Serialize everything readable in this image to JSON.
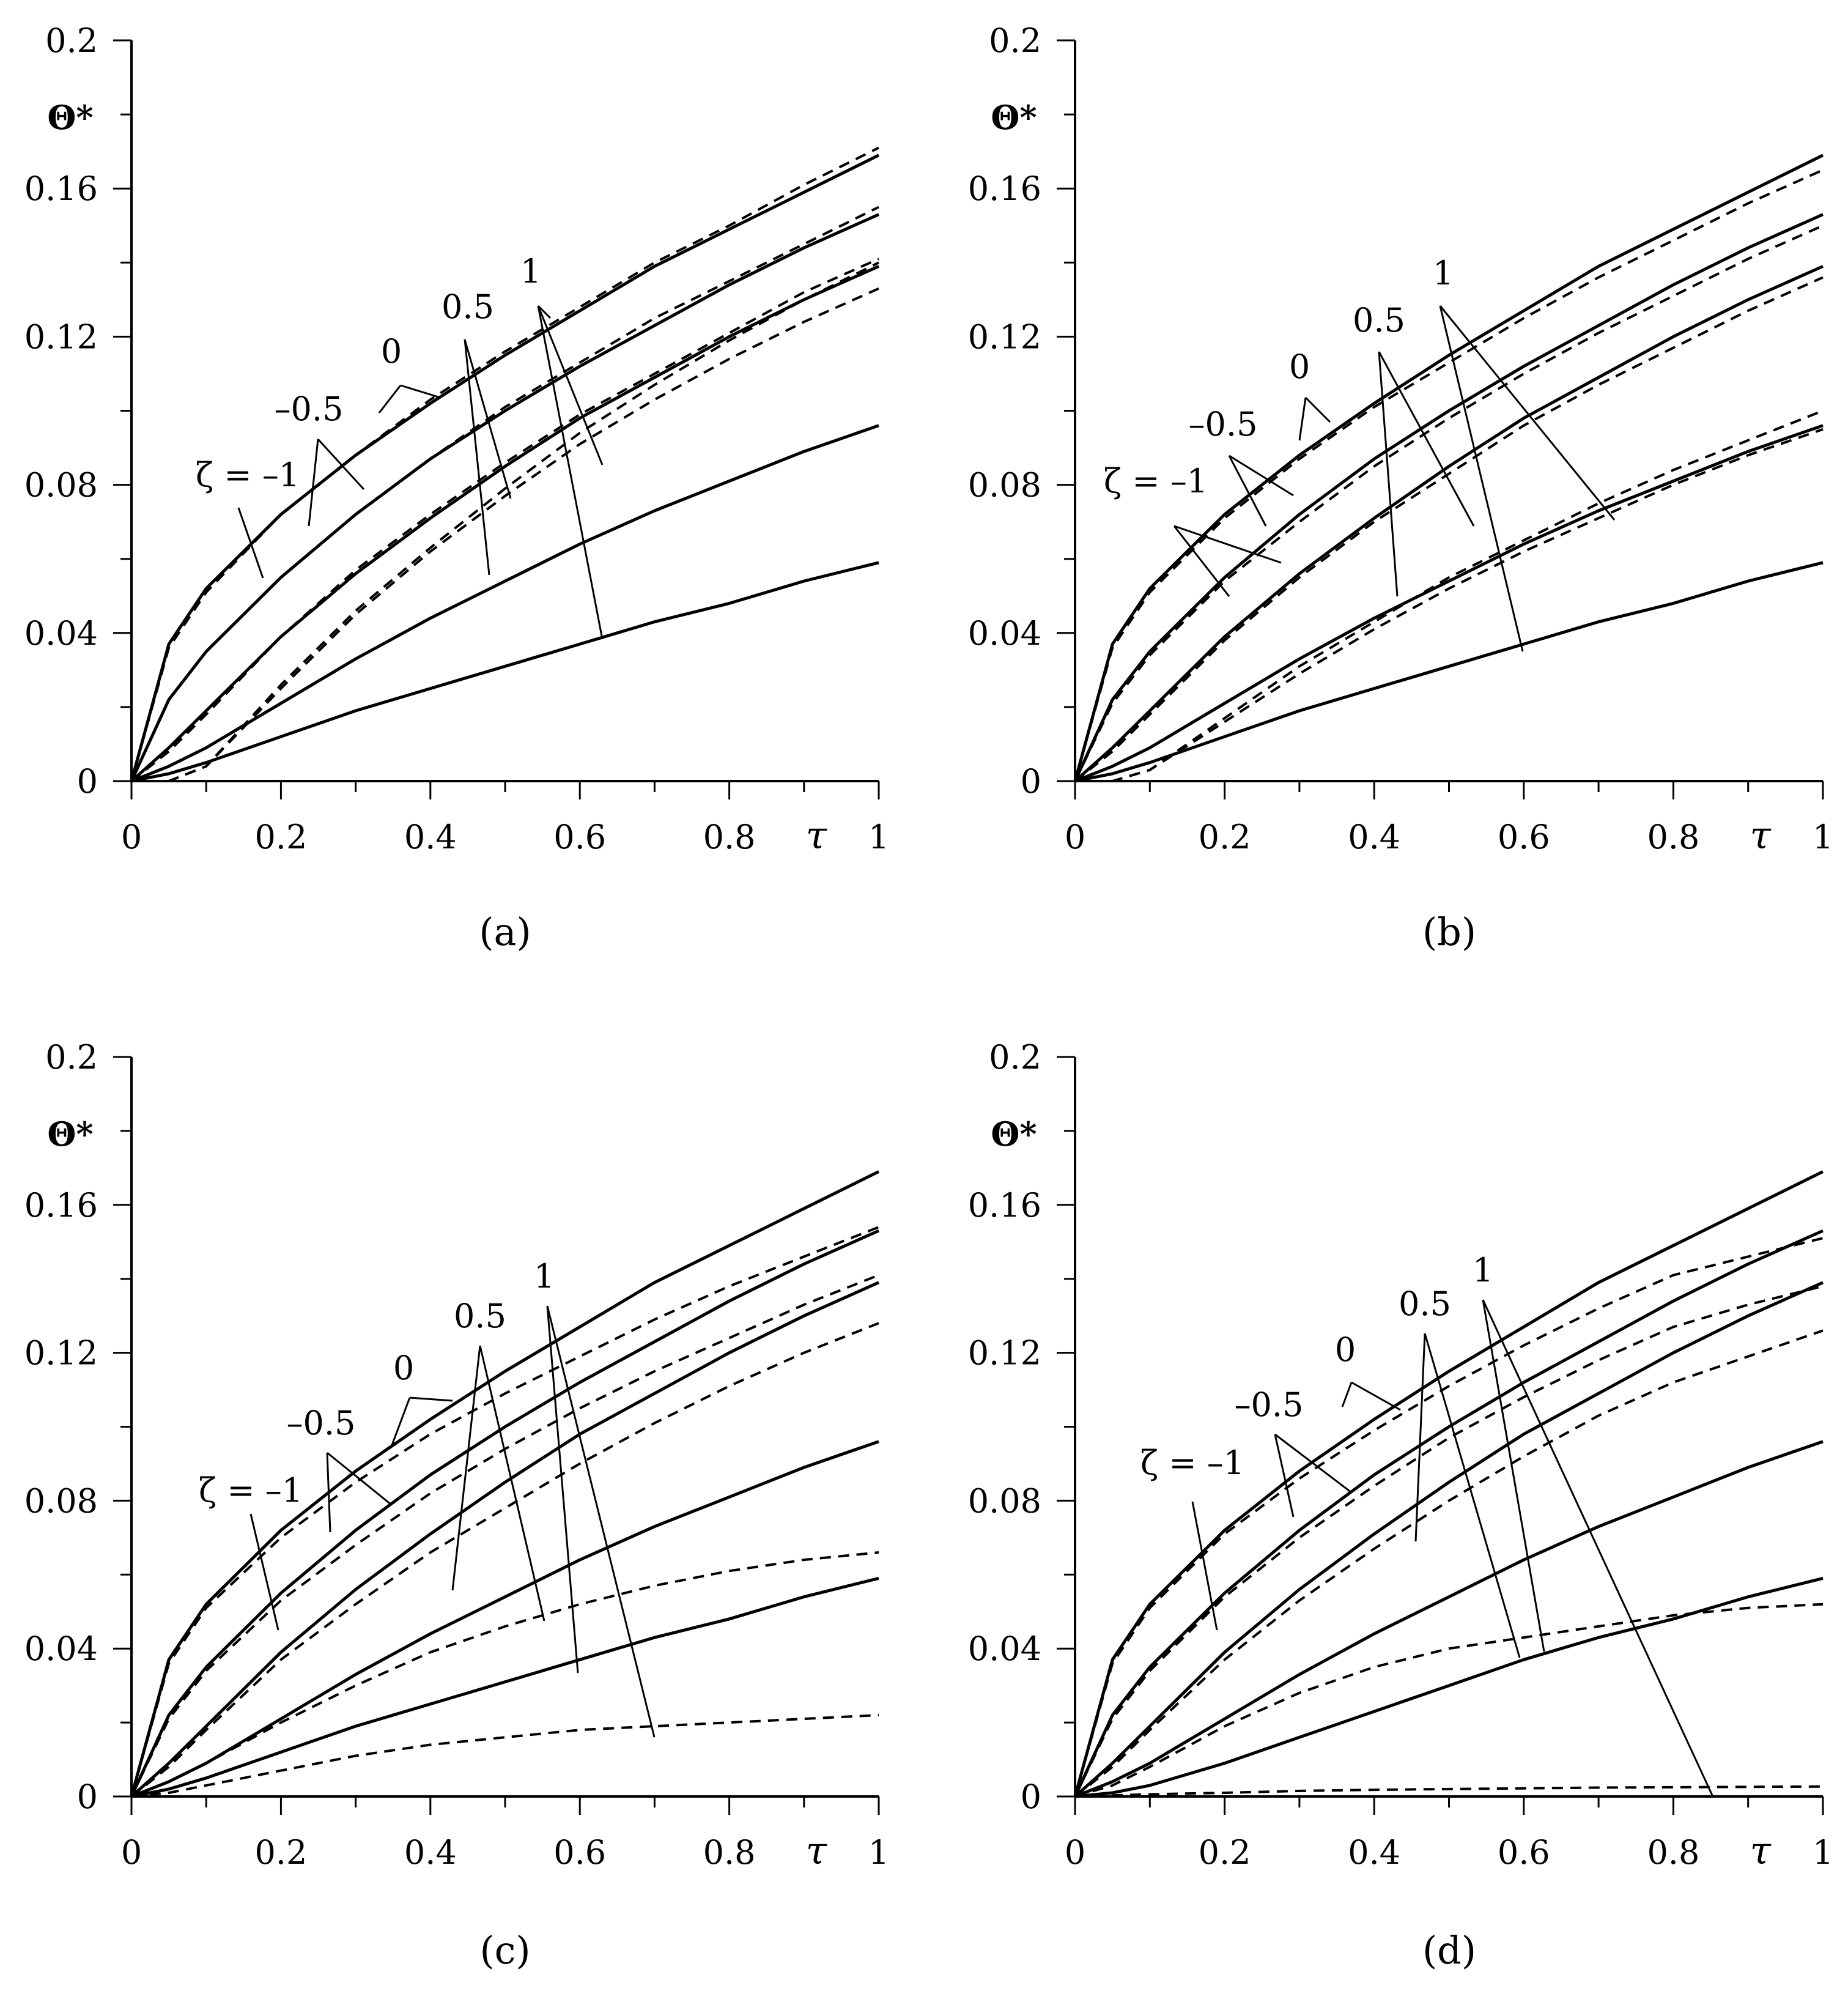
{
  "figure": {
    "panels": [
      {
        "id": "a",
        "label": "(a)"
      },
      {
        "id": "b",
        "label": "(b)"
      },
      {
        "id": "c",
        "label": "(c)"
      },
      {
        "id": "d",
        "label": "(d)"
      }
    ]
  },
  "chart_data": [
    {
      "panel": "a",
      "type": "line",
      "title": "(a)",
      "xlabel": "τ",
      "ylabel": "Θ*",
      "xlim": [
        0,
        1
      ],
      "ylim": [
        0,
        0.2
      ],
      "x_ticks": [
        "0",
        "0.2",
        "0.4",
        "0.6",
        "0.8",
        "1"
      ],
      "y_ticks": [
        "0",
        "0.04",
        "0.08",
        "0.12",
        "0.16",
        "0.2"
      ],
      "curve_labels": [
        "ζ = –1",
        "–0.5",
        "0",
        "0.5",
        "1"
      ],
      "x": [
        0,
        0.05,
        0.1,
        0.2,
        0.3,
        0.4,
        0.5,
        0.6,
        0.7,
        0.8,
        0.9,
        1.0
      ],
      "series": [
        {
          "name": "ζ = –1 solid",
          "style": "solid",
          "values": [
            0,
            0.037,
            0.052,
            0.072,
            0.088,
            0.102,
            0.115,
            0.127,
            0.139,
            0.149,
            0.159,
            0.169
          ]
        },
        {
          "name": "ζ = –1 dashed",
          "style": "dashed",
          "values": [
            0,
            0.036,
            0.051,
            0.072,
            0.088,
            0.103,
            0.116,
            0.128,
            0.14,
            0.15,
            0.161,
            0.171
          ]
        },
        {
          "name": "ζ = –0.5 solid",
          "style": "solid",
          "values": [
            0,
            0.022,
            0.035,
            0.055,
            0.072,
            0.087,
            0.1,
            0.112,
            0.123,
            0.134,
            0.144,
            0.153
          ]
        },
        {
          "name": "ζ = –0.5 dashed",
          "style": "dashed",
          "values": [
            0,
            0.022,
            0.035,
            0.055,
            0.072,
            0.087,
            0.101,
            0.113,
            0.125,
            0.135,
            0.145,
            0.155
          ]
        },
        {
          "name": "ζ = 0 solid",
          "style": "solid",
          "values": [
            0,
            0.009,
            0.019,
            0.039,
            0.056,
            0.071,
            0.085,
            0.098,
            0.109,
            0.12,
            0.13,
            0.139
          ]
        },
        {
          "name": "ζ = 0 dashed",
          "style": "dashed",
          "values": [
            0,
            0.008,
            0.018,
            0.039,
            0.057,
            0.072,
            0.086,
            0.099,
            0.11,
            0.121,
            0.132,
            0.141
          ]
        },
        {
          "name": "ζ = 0.5 solid",
          "style": "solid",
          "values": [
            0,
            0.004,
            0.009,
            0.021,
            0.033,
            0.044,
            0.054,
            0.064,
            0.073,
            0.081,
            0.089,
            0.096
          ]
        },
        {
          "name": "ζ = 0.5 dashed",
          "style": "dashed",
          "values": [
            0,
            0.0,
            0.004,
            0.025,
            0.045,
            0.062,
            0.077,
            0.091,
            0.103,
            0.114,
            0.124,
            0.133
          ]
        },
        {
          "name": "ζ = 1 solid",
          "style": "solid",
          "values": [
            0,
            0.002,
            0.005,
            0.012,
            0.019,
            0.025,
            0.031,
            0.037,
            0.043,
            0.048,
            0.054,
            0.059
          ]
        },
        {
          "name": "ζ = 1 dashed",
          "style": "dashed",
          "values": [
            0,
            0.0,
            0.004,
            0.026,
            0.046,
            0.063,
            0.079,
            0.094,
            0.107,
            0.119,
            0.13,
            0.14
          ]
        }
      ]
    },
    {
      "panel": "b",
      "type": "line",
      "title": "(b)",
      "xlabel": "τ",
      "ylabel": "Θ*",
      "xlim": [
        0,
        1
      ],
      "ylim": [
        0,
        0.2
      ],
      "x_ticks": [
        "0",
        "0.2",
        "0.4",
        "0.6",
        "0.8",
        "1"
      ],
      "y_ticks": [
        "0",
        "0.04",
        "0.08",
        "0.12",
        "0.16",
        "0.2"
      ],
      "curve_labels": [
        "ζ = –1",
        "–0.5",
        "0",
        "0.5",
        "1"
      ],
      "x": [
        0,
        0.05,
        0.1,
        0.2,
        0.3,
        0.4,
        0.5,
        0.6,
        0.7,
        0.8,
        0.9,
        1.0
      ],
      "series": [
        {
          "name": "ζ = –1 solid",
          "style": "solid",
          "values": [
            0,
            0.037,
            0.052,
            0.072,
            0.088,
            0.102,
            0.115,
            0.127,
            0.139,
            0.149,
            0.159,
            0.169
          ]
        },
        {
          "name": "ζ = –1 dashed",
          "style": "dashed",
          "values": [
            0,
            0.036,
            0.051,
            0.071,
            0.087,
            0.101,
            0.113,
            0.125,
            0.136,
            0.146,
            0.156,
            0.165
          ]
        },
        {
          "name": "ζ = –0.5 solid",
          "style": "solid",
          "values": [
            0,
            0.022,
            0.035,
            0.055,
            0.072,
            0.087,
            0.1,
            0.112,
            0.123,
            0.134,
            0.144,
            0.153
          ]
        },
        {
          "name": "ζ = –0.5 dashed",
          "style": "dashed",
          "values": [
            0,
            0.021,
            0.034,
            0.054,
            0.07,
            0.085,
            0.098,
            0.11,
            0.121,
            0.131,
            0.141,
            0.15
          ]
        },
        {
          "name": "ζ = 0 solid",
          "style": "solid",
          "values": [
            0,
            0.009,
            0.019,
            0.039,
            0.056,
            0.071,
            0.085,
            0.098,
            0.109,
            0.12,
            0.13,
            0.139
          ]
        },
        {
          "name": "ζ = 0 dashed",
          "style": "dashed",
          "values": [
            0,
            0.008,
            0.018,
            0.038,
            0.055,
            0.07,
            0.083,
            0.096,
            0.107,
            0.117,
            0.127,
            0.136
          ]
        },
        {
          "name": "ζ = 0.5 solid",
          "style": "solid",
          "values": [
            0,
            0.004,
            0.009,
            0.021,
            0.033,
            0.044,
            0.054,
            0.064,
            0.073,
            0.081,
            0.089,
            0.096
          ]
        },
        {
          "name": "ζ = 0.5 dashed",
          "style": "dashed",
          "values": [
            0,
            0.0,
            0.003,
            0.017,
            0.031,
            0.043,
            0.055,
            0.065,
            0.075,
            0.084,
            0.092,
            0.1
          ]
        },
        {
          "name": "ζ = 1 solid",
          "style": "solid",
          "values": [
            0,
            0.002,
            0.005,
            0.012,
            0.019,
            0.025,
            0.031,
            0.037,
            0.043,
            0.048,
            0.054,
            0.059
          ]
        },
        {
          "name": "ζ = 1 dashed",
          "style": "dashed",
          "values": [
            0,
            0.0,
            0.003,
            0.016,
            0.029,
            0.041,
            0.052,
            0.062,
            0.071,
            0.08,
            0.088,
            0.095
          ]
        }
      ]
    },
    {
      "panel": "c",
      "type": "line",
      "title": "(c)",
      "xlabel": "τ",
      "ylabel": "Θ*",
      "xlim": [
        0,
        1
      ],
      "ylim": [
        0,
        0.2
      ],
      "x_ticks": [
        "0",
        "0.2",
        "0.4",
        "0.6",
        "0.8",
        "1"
      ],
      "y_ticks": [
        "0",
        "0.04",
        "0.08",
        "0.12",
        "0.16",
        "0.2"
      ],
      "curve_labels": [
        "ζ = –1",
        "–0.5",
        "0",
        "0.5",
        "1"
      ],
      "x": [
        0,
        0.05,
        0.1,
        0.2,
        0.3,
        0.4,
        0.5,
        0.6,
        0.7,
        0.8,
        0.9,
        1.0
      ],
      "series": [
        {
          "name": "ζ = –1 solid",
          "style": "solid",
          "values": [
            0,
            0.037,
            0.052,
            0.072,
            0.088,
            0.102,
            0.115,
            0.127,
            0.139,
            0.149,
            0.159,
            0.169
          ]
        },
        {
          "name": "ζ = –1 dashed",
          "style": "dashed",
          "values": [
            0,
            0.036,
            0.051,
            0.07,
            0.085,
            0.098,
            0.109,
            0.119,
            0.129,
            0.138,
            0.146,
            0.154
          ]
        },
        {
          "name": "ζ = –0.5 solid",
          "style": "solid",
          "values": [
            0,
            0.022,
            0.035,
            0.055,
            0.072,
            0.087,
            0.1,
            0.112,
            0.123,
            0.134,
            0.144,
            0.153
          ]
        },
        {
          "name": "ζ = –0.5 dashed",
          "style": "dashed",
          "values": [
            0,
            0.021,
            0.034,
            0.053,
            0.068,
            0.082,
            0.094,
            0.105,
            0.115,
            0.124,
            0.133,
            0.141
          ]
        },
        {
          "name": "ζ = 0 solid",
          "style": "solid",
          "values": [
            0,
            0.009,
            0.019,
            0.039,
            0.056,
            0.071,
            0.085,
            0.098,
            0.109,
            0.12,
            0.13,
            0.139
          ]
        },
        {
          "name": "ζ = 0 dashed",
          "style": "dashed",
          "values": [
            0,
            0.008,
            0.018,
            0.037,
            0.052,
            0.066,
            0.078,
            0.09,
            0.101,
            0.111,
            0.12,
            0.128
          ]
        },
        {
          "name": "ζ = 0.5 solid",
          "style": "solid",
          "values": [
            0,
            0.004,
            0.009,
            0.021,
            0.033,
            0.044,
            0.054,
            0.064,
            0.073,
            0.081,
            0.089,
            0.096
          ]
        },
        {
          "name": "ζ = 0.5 dashed",
          "style": "dashed",
          "values": [
            0,
            0.004,
            0.009,
            0.02,
            0.03,
            0.039,
            0.046,
            0.052,
            0.057,
            0.061,
            0.064,
            0.066
          ]
        },
        {
          "name": "ζ = 1 solid",
          "style": "solid",
          "values": [
            0,
            0.002,
            0.005,
            0.012,
            0.019,
            0.025,
            0.031,
            0.037,
            0.043,
            0.048,
            0.054,
            0.059
          ]
        },
        {
          "name": "ζ = 1 dashed",
          "style": "dashed",
          "values": [
            0,
            0.001,
            0.003,
            0.007,
            0.011,
            0.014,
            0.016,
            0.018,
            0.019,
            0.02,
            0.021,
            0.022
          ]
        }
      ]
    },
    {
      "panel": "d",
      "type": "line",
      "title": "(d)",
      "xlabel": "τ",
      "ylabel": "Θ*",
      "xlim": [
        0,
        1
      ],
      "ylim": [
        0,
        0.2
      ],
      "x_ticks": [
        "0",
        "0.2",
        "0.4",
        "0.6",
        "0.8",
        "1"
      ],
      "y_ticks": [
        "0",
        "0.04",
        "0.08",
        "0.12",
        "0.16",
        "0.2"
      ],
      "curve_labels": [
        "ζ = –1",
        "–0.5",
        "0",
        "0.5",
        "1"
      ],
      "x": [
        0,
        0.05,
        0.1,
        0.2,
        0.3,
        0.4,
        0.5,
        0.6,
        0.7,
        0.8,
        0.9,
        1.0
      ],
      "series": [
        {
          "name": "ζ = –1 solid",
          "style": "solid",
          "values": [
            0,
            0.037,
            0.052,
            0.072,
            0.088,
            0.102,
            0.115,
            0.127,
            0.139,
            0.149,
            0.159,
            0.169
          ]
        },
        {
          "name": "ζ = –1 dashed",
          "style": "dashed",
          "values": [
            0,
            0.036,
            0.051,
            0.071,
            0.086,
            0.099,
            0.111,
            0.122,
            0.132,
            0.141,
            0.146,
            0.151
          ]
        },
        {
          "name": "ζ = –0.5 solid",
          "style": "solid",
          "values": [
            0,
            0.022,
            0.035,
            0.055,
            0.072,
            0.087,
            0.1,
            0.112,
            0.123,
            0.134,
            0.144,
            0.153
          ]
        },
        {
          "name": "ζ = –0.5 dashed",
          "style": "dashed",
          "values": [
            0,
            0.021,
            0.034,
            0.054,
            0.07,
            0.084,
            0.097,
            0.108,
            0.118,
            0.127,
            0.133,
            0.138
          ]
        },
        {
          "name": "ζ = 0 solid",
          "style": "solid",
          "values": [
            0,
            0.009,
            0.019,
            0.039,
            0.056,
            0.071,
            0.085,
            0.098,
            0.109,
            0.12,
            0.13,
            0.139
          ]
        },
        {
          "name": "ζ = 0 dashed",
          "style": "dashed",
          "values": [
            0,
            0.008,
            0.018,
            0.037,
            0.053,
            0.067,
            0.08,
            0.092,
            0.103,
            0.112,
            0.119,
            0.126
          ]
        },
        {
          "name": "ζ = 0.5 solid",
          "style": "solid",
          "values": [
            0,
            0.004,
            0.009,
            0.021,
            0.033,
            0.044,
            0.054,
            0.064,
            0.073,
            0.081,
            0.089,
            0.096
          ]
        },
        {
          "name": "ζ = 0.5 dashed",
          "style": "dashed",
          "values": [
            0,
            0.003,
            0.008,
            0.019,
            0.028,
            0.035,
            0.04,
            0.043,
            0.046,
            0.049,
            0.051,
            0.052
          ]
        },
        {
          "name": "ζ = 1 solid",
          "style": "solid",
          "values": [
            0,
            0.001,
            0.003,
            0.009,
            0.016,
            0.023,
            0.03,
            0.037,
            0.043,
            0.048,
            0.054,
            0.059
          ]
        },
        {
          "name": "ζ = 1 dashed",
          "style": "dashed",
          "values": [
            0,
            0.0003,
            0.0006,
            0.001,
            0.0015,
            0.0018,
            0.002,
            0.0022,
            0.0024,
            0.0025,
            0.0026,
            0.0027
          ]
        }
      ]
    }
  ]
}
